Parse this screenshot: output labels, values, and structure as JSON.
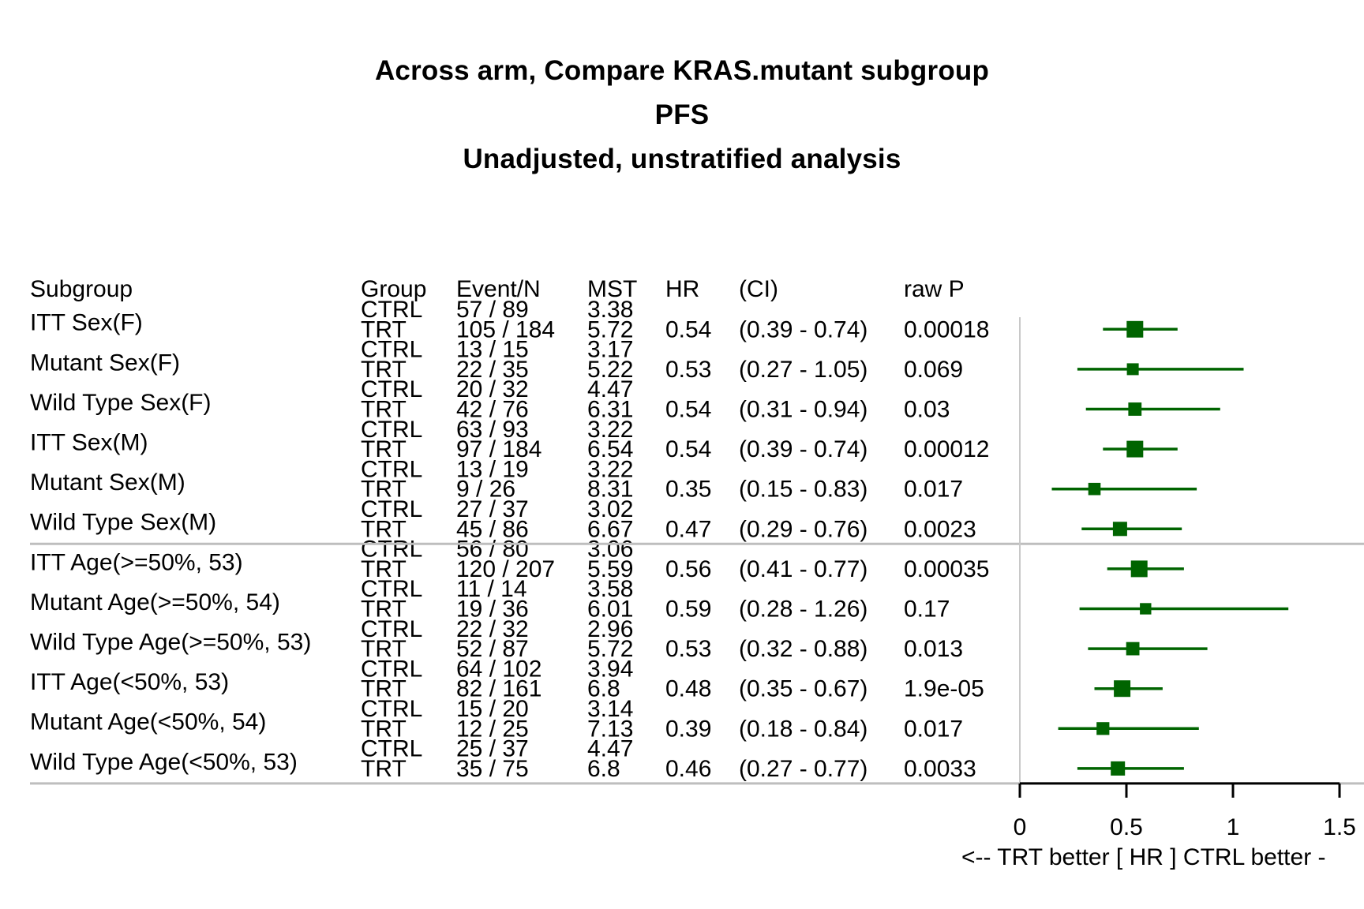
{
  "titles": [
    "Across arm, Compare KRAS.mutant subgroup",
    "PFS",
    "Unadjusted, unstratified analysis"
  ],
  "headers": {
    "subgroup": "Subgroup",
    "group": "Group",
    "event_n": "Event/N",
    "mst": "MST",
    "hr": "HR",
    "ci": "(CI)",
    "raw_p": "raw P"
  },
  "axis": {
    "ticks": [
      0,
      0.5,
      1,
      1.5
    ],
    "tick_labels": [
      "0",
      "0.5",
      "1",
      "1.5"
    ],
    "xlim": [
      0,
      1.5
    ],
    "reference_line": 0,
    "label": "<--  TRT better [ HR ]  CTRL better -"
  },
  "colors": {
    "marker": "#006400",
    "axis": "#000000",
    "separator": "#bebebe",
    "reference": "#c8c8c8"
  },
  "chart_data": {
    "type": "forest",
    "x_measure": "HR",
    "xlim": [
      0,
      1.5
    ],
    "rows": [
      {
        "subgroup": "ITT Sex(F)",
        "ctrl_events": "57 / 89",
        "ctrl_mst": "3.38",
        "trt_events": "105 / 184",
        "trt_mst": "5.72",
        "hr": 0.54,
        "hr_label": "0.54",
        "ci_low": 0.39,
        "ci_high": 0.74,
        "ci_label": "(0.39 - 0.74)",
        "p": "0.00018",
        "weight": 1.0
      },
      {
        "subgroup": "Mutant Sex(F)",
        "ctrl_events": "13 / 15",
        "ctrl_mst": "3.17",
        "trt_events": "22 / 35",
        "trt_mst": "5.22",
        "hr": 0.53,
        "hr_label": "0.53",
        "ci_low": 0.27,
        "ci_high": 1.05,
        "ci_label": "(0.27 - 1.05)",
        "p": "0.069",
        "weight": 0.5
      },
      {
        "subgroup": "Wild Type Sex(F)",
        "ctrl_events": "20 / 32",
        "ctrl_mst": "4.47",
        "trt_events": "42 / 76",
        "trt_mst": "6.31",
        "hr": 0.54,
        "hr_label": "0.54",
        "ci_low": 0.31,
        "ci_high": 0.94,
        "ci_label": "(0.31 - 0.94)",
        "p": "0.03",
        "weight": 0.65
      },
      {
        "subgroup": "ITT Sex(M)",
        "ctrl_events": "63 / 93",
        "ctrl_mst": "3.22",
        "trt_events": "97 / 184",
        "trt_mst": "6.54",
        "hr": 0.54,
        "hr_label": "0.54",
        "ci_low": 0.39,
        "ci_high": 0.74,
        "ci_label": "(0.39 - 0.74)",
        "p": "0.00012",
        "weight": 1.0
      },
      {
        "subgroup": "Mutant Sex(M)",
        "ctrl_events": "13 / 19",
        "ctrl_mst": "3.22",
        "trt_events": "9 / 26",
        "trt_mst": "8.31",
        "hr": 0.35,
        "hr_label": "0.35",
        "ci_low": 0.15,
        "ci_high": 0.83,
        "ci_label": "(0.15 - 0.83)",
        "p": "0.017",
        "weight": 0.55
      },
      {
        "subgroup": "Wild Type Sex(M)",
        "ctrl_events": "27 / 37",
        "ctrl_mst": "3.02",
        "trt_events": "45 / 86",
        "trt_mst": "6.67",
        "hr": 0.47,
        "hr_label": "0.47",
        "ci_low": 0.29,
        "ci_high": 0.76,
        "ci_label": "(0.29 - 0.76)",
        "p": "0.0023",
        "weight": 0.75
      },
      {
        "subgroup": "ITT Age(>=50%, 53)",
        "ctrl_events": "56 / 80",
        "ctrl_mst": "3.06",
        "trt_events": "120 / 207",
        "trt_mst": "5.59",
        "hr": 0.56,
        "hr_label": "0.56",
        "ci_low": 0.41,
        "ci_high": 0.77,
        "ci_label": "(0.41 - 0.77)",
        "p": "0.00035",
        "weight": 1.0
      },
      {
        "subgroup": "Mutant Age(>=50%, 54)",
        "ctrl_events": "11 / 14",
        "ctrl_mst": "3.58",
        "trt_events": "19 / 36",
        "trt_mst": "6.01",
        "hr": 0.59,
        "hr_label": "0.59",
        "ci_low": 0.28,
        "ci_high": 1.26,
        "ci_label": "(0.28 - 1.26)",
        "p": "0.17",
        "weight": 0.45
      },
      {
        "subgroup": "Wild Type Age(>=50%, 53)",
        "ctrl_events": "22 / 32",
        "ctrl_mst": "2.96",
        "trt_events": "52 / 87",
        "trt_mst": "5.72",
        "hr": 0.53,
        "hr_label": "0.53",
        "ci_low": 0.32,
        "ci_high": 0.88,
        "ci_label": "(0.32 - 0.88)",
        "p": "0.013",
        "weight": 0.65
      },
      {
        "subgroup": "ITT Age(<50%, 53)",
        "ctrl_events": "64 / 102",
        "ctrl_mst": "3.94",
        "trt_events": "82 / 161",
        "trt_mst": "6.8",
        "hr": 0.48,
        "hr_label": "0.48",
        "ci_low": 0.35,
        "ci_high": 0.67,
        "ci_label": "(0.35 - 0.67)",
        "p": "1.9e-05",
        "weight": 1.0
      },
      {
        "subgroup": "Mutant Age(<50%, 54)",
        "ctrl_events": "15 / 20",
        "ctrl_mst": "3.14",
        "trt_events": "12 / 25",
        "trt_mst": "7.13",
        "hr": 0.39,
        "hr_label": "0.39",
        "ci_low": 0.18,
        "ci_high": 0.84,
        "ci_label": "(0.18 - 0.84)",
        "p": "0.017",
        "weight": 0.6
      },
      {
        "subgroup": "Wild Type Age(<50%, 53)",
        "ctrl_events": "25 / 37",
        "ctrl_mst": "4.47",
        "trt_events": "35 / 75",
        "trt_mst": "6.8",
        "hr": 0.46,
        "hr_label": "0.46",
        "ci_low": 0.27,
        "ci_high": 0.77,
        "ci_label": "(0.27 - 0.77)",
        "p": "0.0033",
        "weight": 0.75
      }
    ],
    "group_labels": [
      "CTRL",
      "TRT"
    ],
    "separators_after_row": [
      5,
      11
    ],
    "grid": false
  }
}
